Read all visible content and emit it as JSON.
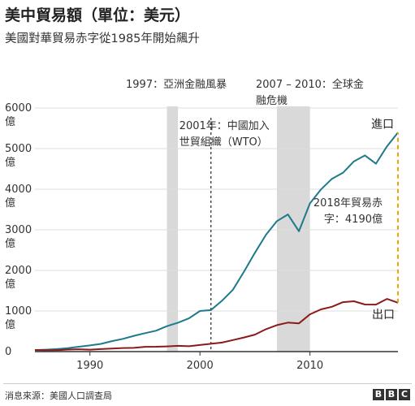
{
  "title": "美中貿易額（單位：美元）",
  "subtitle": "美國對華貿易赤字從1985年開始飆升",
  "source": "消息來源：美國人口調查局",
  "brand": [
    "B",
    "B",
    "C"
  ],
  "colors": {
    "imports": "#1d7a8c",
    "exports": "#8b1a1a",
    "deficit": "#f0a400",
    "shade": "#d9d9d9",
    "axis": "#333333",
    "grid": "#dddddd"
  },
  "chart_data": {
    "type": "line",
    "xlim": [
      1985,
      2018
    ],
    "ylim": [
      0,
      6000
    ],
    "x_ticks": [
      1990,
      2000,
      2010
    ],
    "y_ticks": [
      {
        "value": 6000,
        "label": [
          "6000",
          "億"
        ]
      },
      {
        "value": 5000,
        "label": [
          "5000",
          "億"
        ]
      },
      {
        "value": 4000,
        "label": [
          "4000",
          "億"
        ]
      },
      {
        "value": 3000,
        "label": [
          "3000",
          "億"
        ]
      },
      {
        "value": 2000,
        "label": [
          "2000",
          "億"
        ]
      },
      {
        "value": 1000,
        "label": [
          "1000",
          "億"
        ]
      },
      {
        "value": 0,
        "label": [
          "0"
        ]
      }
    ],
    "series": [
      {
        "name": "進口",
        "key": "imports",
        "x": [
          1985,
          1986,
          1987,
          1988,
          1989,
          1990,
          1991,
          1992,
          1993,
          1994,
          1995,
          1996,
          1997,
          1998,
          1999,
          2000,
          2001,
          2002,
          2003,
          2004,
          2005,
          2006,
          2007,
          2008,
          2009,
          2010,
          2011,
          2012,
          2013,
          2014,
          2015,
          2016,
          2017,
          2018
        ],
        "values": [
          38,
          48,
          63,
          85,
          120,
          152,
          190,
          257,
          315,
          387,
          455,
          515,
          626,
          712,
          817,
          1000,
          1023,
          1252,
          1524,
          1967,
          2434,
          2878,
          3215,
          3378,
          2965,
          3650,
          3993,
          4256,
          4404,
          4686,
          4831,
          4628,
          5056,
          5395
        ]
      },
      {
        "name": "出口",
        "key": "exports",
        "x": [
          1985,
          1986,
          1987,
          1988,
          1989,
          1990,
          1991,
          1992,
          1993,
          1994,
          1995,
          1996,
          1997,
          1998,
          1999,
          2000,
          2001,
          2002,
          2003,
          2004,
          2005,
          2006,
          2007,
          2008,
          2009,
          2010,
          2011,
          2012,
          2013,
          2014,
          2015,
          2016,
          2017,
          2018
        ],
        "values": [
          38,
          31,
          35,
          50,
          58,
          48,
          63,
          75,
          88,
          93,
          118,
          120,
          128,
          143,
          131,
          163,
          192,
          221,
          284,
          347,
          418,
          552,
          652,
          715,
          696,
          918,
          1040,
          1105,
          1219,
          1240,
          1160,
          1158,
          1298,
          1205
        ]
      }
    ],
    "shaded_periods": [
      {
        "start": 1997,
        "end": 1998,
        "label": "1997：亞洲金融風暴"
      },
      {
        "start": 2007,
        "end": 2010,
        "label": [
          "2007 – 2010：全球金",
          "融危機"
        ]
      }
    ],
    "event_lines": [
      {
        "x": 2001,
        "label": [
          "2001年：中國加入",
          "世貿組織（WTO）"
        ]
      }
    ],
    "deficit_annotation": {
      "x": 2018,
      "from": 1205,
      "to": 5395,
      "label": [
        "2018年貿易赤",
        "字：4190億"
      ]
    }
  }
}
